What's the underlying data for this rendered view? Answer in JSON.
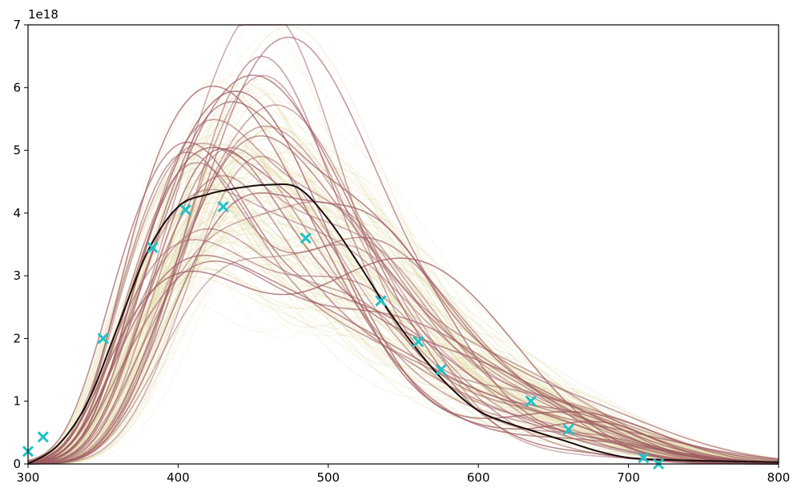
{
  "chart_data": {
    "type": "line",
    "title": "",
    "xlabel": "",
    "ylabel": "",
    "y_offset_label": "1e18",
    "xlim": [
      300,
      800
    ],
    "ylim": [
      0,
      7
    ],
    "y_scale_factor": 1e+18,
    "grid": false,
    "x_ticks": [
      "300",
      "400",
      "500",
      "600",
      "700",
      "800"
    ],
    "y_ticks": [
      "0",
      "1",
      "2",
      "3",
      "4",
      "5",
      "6",
      "7"
    ],
    "colors": {
      "samples_faint": "#e3dcaa",
      "samples_highlight": "#9e5a62",
      "mean_line": "#1a0a0a",
      "observations": "#1ec3c8"
    },
    "reference_curve": {
      "name": "",
      "x": [
        300,
        320,
        340,
        360,
        380,
        400,
        420,
        440,
        460,
        480,
        500,
        520,
        540,
        560,
        580,
        600,
        620,
        640,
        660,
        680,
        700,
        720,
        750,
        800
      ],
      "y": [
        0.0,
        0.3,
        1.0,
        2.2,
        3.4,
        4.1,
        4.3,
        4.4,
        4.45,
        4.4,
        3.9,
        3.2,
        2.45,
        1.8,
        1.25,
        0.85,
        0.65,
        0.5,
        0.35,
        0.2,
        0.1,
        0.07,
        0.05,
        0.03
      ]
    },
    "observations": {
      "marker": "x",
      "x": [
        300,
        310,
        350,
        383,
        405,
        430,
        485,
        535,
        560,
        575,
        635,
        660,
        710,
        720
      ],
      "y": [
        0.2,
        0.43,
        2.0,
        3.45,
        4.05,
        4.1,
        3.6,
        2.6,
        1.95,
        1.5,
        1.0,
        0.55,
        0.1,
        0.0
      ]
    },
    "sample_bands": {
      "faint_count": 120,
      "highlight_count": 30
    }
  }
}
